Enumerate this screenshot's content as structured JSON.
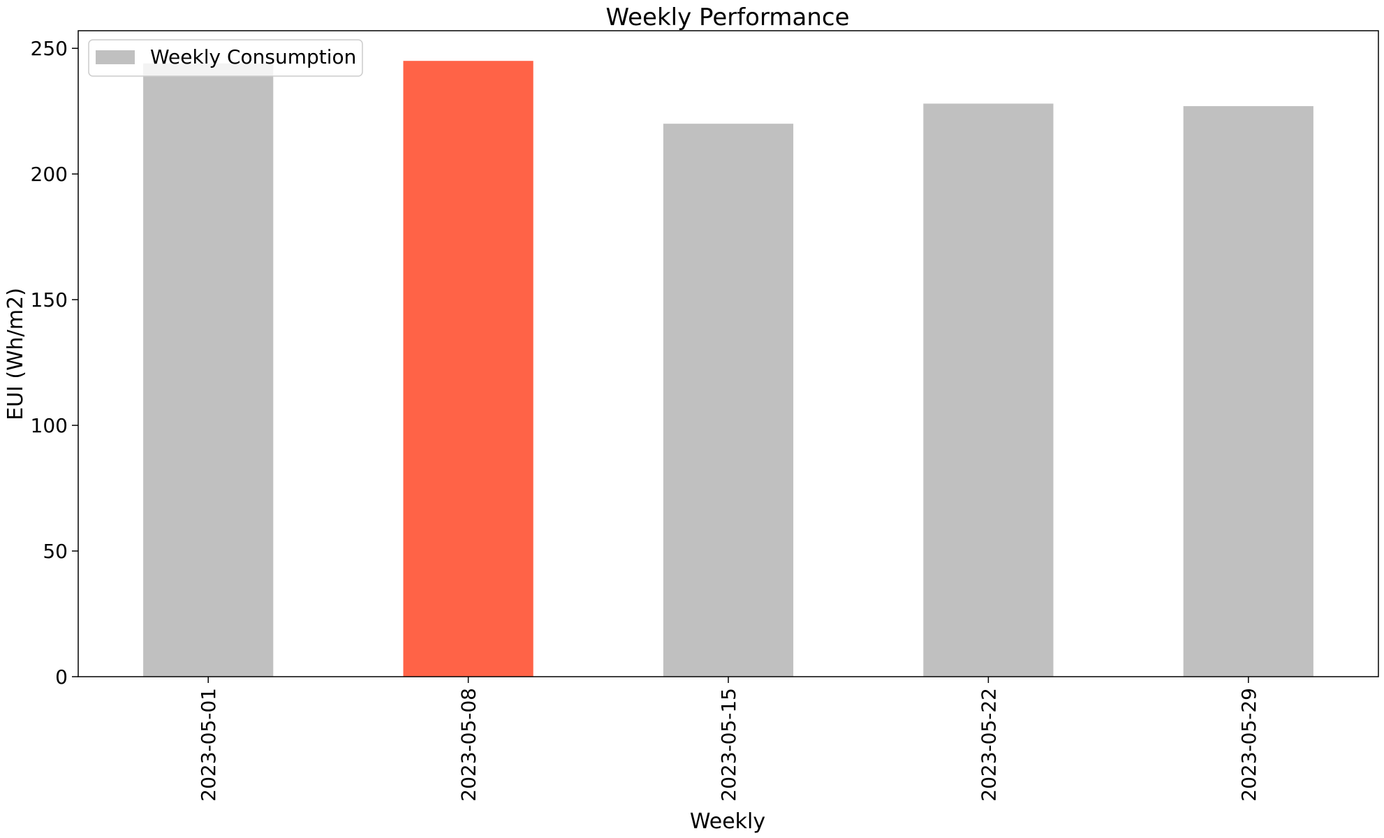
{
  "chart_data": {
    "type": "bar",
    "title": "Weekly Performance",
    "xlabel": "Weekly",
    "ylabel": "EUI (Wh/m2)",
    "categories": [
      "2023-05-01",
      "2023-05-08",
      "2023-05-15",
      "2023-05-22",
      "2023-05-29"
    ],
    "series": [
      {
        "name": "Weekly Consumption",
        "values": [
          244,
          245,
          220,
          228,
          227
        ]
      }
    ],
    "bar_colors": [
      "#c0c0c0",
      "#ff6347",
      "#c0c0c0",
      "#c0c0c0",
      "#c0c0c0"
    ],
    "ylim": [
      0,
      257
    ],
    "yticks": [
      0,
      50,
      100,
      150,
      200,
      250
    ],
    "legend": {
      "placement": "top-left",
      "color": "#c0c0c0"
    },
    "grid": false
  }
}
